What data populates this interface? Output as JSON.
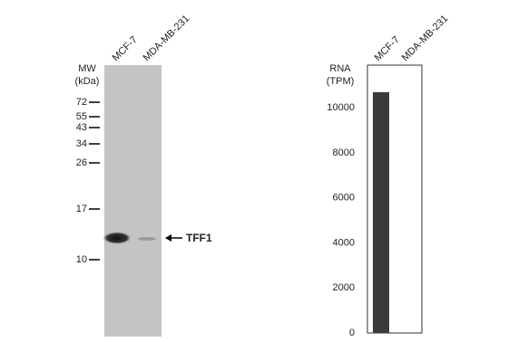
{
  "blot": {
    "mw_label": "MW",
    "mw_unit": "(kDa)",
    "lanes": [
      "MCF-7",
      "MDA-MB-231"
    ],
    "markers": [
      72,
      55,
      43,
      34,
      26,
      17,
      10
    ],
    "band_label": "TFF1"
  },
  "chart_data": {
    "type": "bar",
    "y_label": [
      "RNA",
      "(TPM)"
    ],
    "categories": [
      "MCF-7",
      "MDA-MB-231"
    ],
    "values": [
      10700,
      0
    ],
    "color": "#3a3a3a",
    "ylim": [
      0,
      11900
    ],
    "yticks": [
      0,
      2000,
      4000,
      6000,
      8000,
      10000
    ]
  }
}
